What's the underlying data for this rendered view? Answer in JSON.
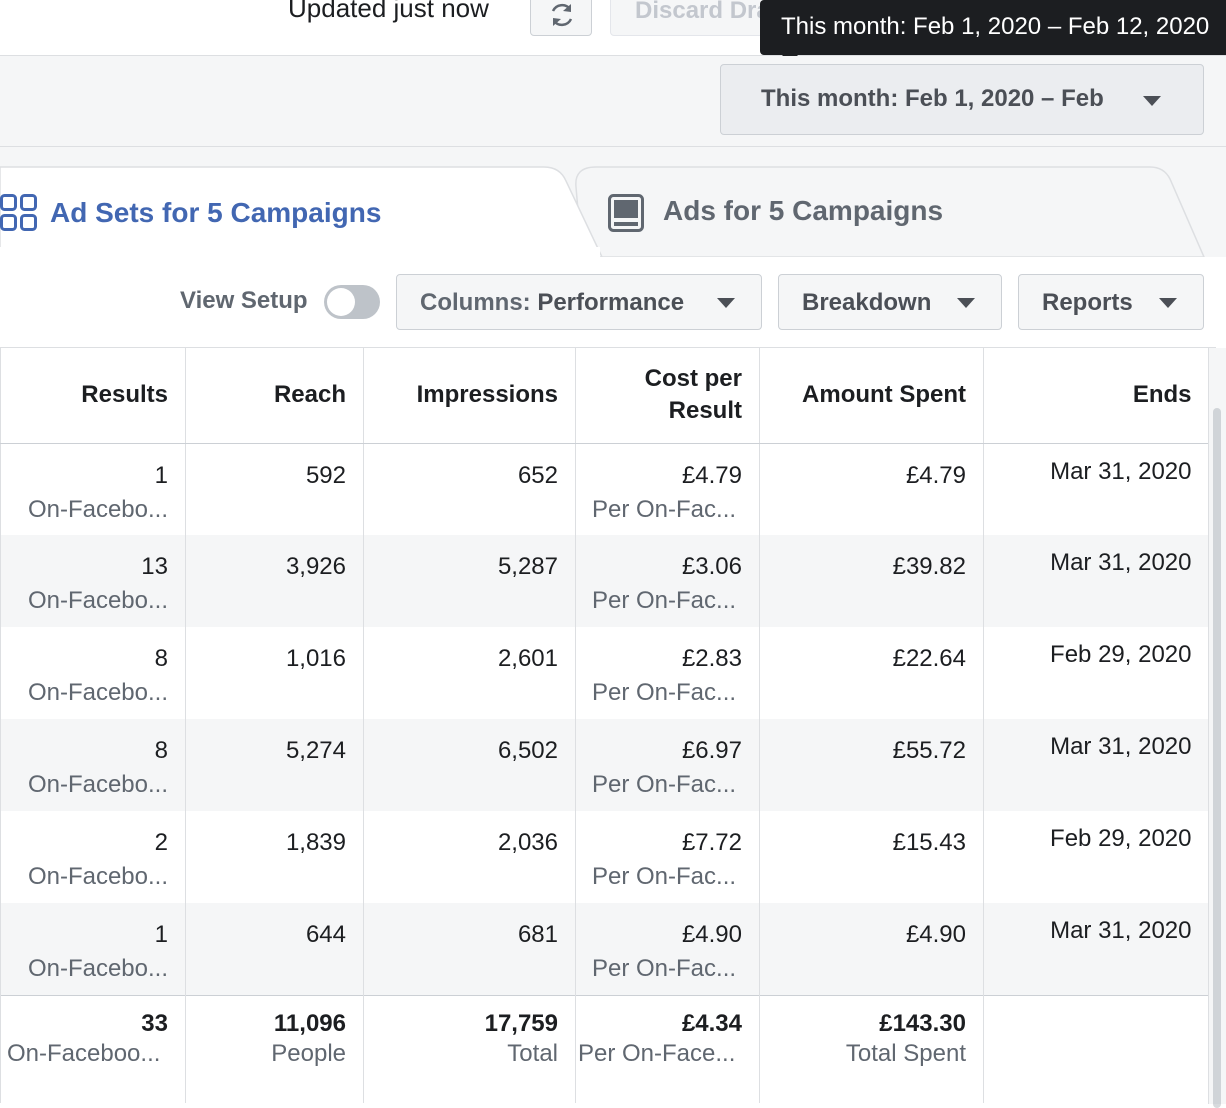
{
  "topbar": {
    "updated_text": "Updated just now",
    "refresh_icon": "refresh-icon",
    "discard_label": "Discard Drafts",
    "tooltip_text": "This month: Feb 1, 2020 – Feb 12, 2020"
  },
  "date_picker": {
    "label": "This month: Feb 1, 2020 – Feb"
  },
  "tabs": [
    {
      "label": "Ad Sets for 5 Campaigns",
      "icon": "ad-sets-grid-icon",
      "active": true
    },
    {
      "label": "Ads for 5 Campaigns",
      "icon": "ads-icon",
      "active": false
    }
  ],
  "toolbar": {
    "view_setup_label": "View Setup",
    "columns_prefix": "Columns: ",
    "columns_value": "Performance",
    "breakdown_label": "Breakdown",
    "reports_label": "Reports"
  },
  "table": {
    "headers": {
      "results": "Results",
      "reach": "Reach",
      "impressions": "Impressions",
      "cost_per_result_1": "Cost per",
      "cost_per_result_2": "Result",
      "amount_spent": "Amount Spent",
      "ends": "Ends"
    },
    "rows": [
      {
        "results": "1",
        "results_sub": "On-Facebo...",
        "reach": "592",
        "impressions": "652",
        "cost": "£4.79",
        "cost_sub": "Per On-Fac...",
        "spent": "£4.79",
        "ends": "Mar 31, 2020"
      },
      {
        "results": "13",
        "results_sub": "On-Facebo...",
        "reach": "3,926",
        "impressions": "5,287",
        "cost": "£3.06",
        "cost_sub": "Per On-Fac...",
        "spent": "£39.82",
        "ends": "Mar 31, 2020"
      },
      {
        "results": "8",
        "results_sub": "On-Facebo...",
        "reach": "1,016",
        "impressions": "2,601",
        "cost": "£2.83",
        "cost_sub": "Per On-Fac...",
        "spent": "£22.64",
        "ends": "Feb 29, 2020"
      },
      {
        "results": "8",
        "results_sub": "On-Facebo...",
        "reach": "5,274",
        "impressions": "6,502",
        "cost": "£6.97",
        "cost_sub": "Per On-Fac...",
        "spent": "£55.72",
        "ends": "Mar 31, 2020"
      },
      {
        "results": "2",
        "results_sub": "On-Facebo...",
        "reach": "1,839",
        "impressions": "2,036",
        "cost": "£7.72",
        "cost_sub": "Per On-Fac...",
        "spent": "£15.43",
        "ends": "Feb 29, 2020"
      },
      {
        "results": "1",
        "results_sub": "On-Facebo...",
        "reach": "644",
        "impressions": "681",
        "cost": "£4.90",
        "cost_sub": "Per On-Fac...",
        "spent": "£4.90",
        "ends": "Mar 31, 2020"
      }
    ],
    "totals": {
      "results": "33",
      "results_sub": "On-Faceboo...",
      "reach": "11,096",
      "reach_sub": "People",
      "impressions": "17,759",
      "impressions_sub": "Total",
      "cost": "£4.34",
      "cost_sub": "Per On-Face...",
      "spent": "£143.30",
      "spent_sub": "Total Spent"
    }
  },
  "colors": {
    "accent": "#4267b2",
    "text": "#1c1e21",
    "muted": "#606770",
    "border": "#dddfe2",
    "stripe": "#f5f6f7",
    "tooltip_bg": "#1c1e21"
  }
}
